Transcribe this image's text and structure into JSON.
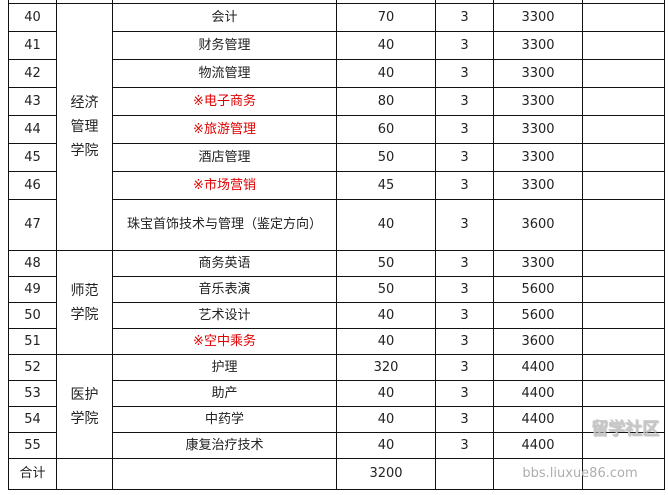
{
  "rows": [
    {
      "no": "40",
      "major": "会计",
      "count": "70",
      "years": "3",
      "fee": "3300",
      "highlight": false
    },
    {
      "no": "41",
      "major": "财务管理",
      "count": "40",
      "years": "3",
      "fee": "3300",
      "highlight": false
    },
    {
      "no": "42",
      "major": "物流管理",
      "count": "40",
      "years": "3",
      "fee": "3300",
      "highlight": false
    },
    {
      "no": "43",
      "major": "※电子商务",
      "count": "80",
      "years": "3",
      "fee": "3300",
      "highlight": true
    },
    {
      "no": "44",
      "major": "※旅游管理",
      "count": "60",
      "years": "3",
      "fee": "3300",
      "highlight": true
    },
    {
      "no": "45",
      "major": "酒店管理",
      "count": "50",
      "years": "3",
      "fee": "3300",
      "highlight": false
    },
    {
      "no": "46",
      "major": "※市场营销",
      "count": "45",
      "years": "3",
      "fee": "3300",
      "highlight": true
    },
    {
      "no": "47",
      "major": "珠宝首饰技术与管理（鉴定方向）",
      "count": "40",
      "years": "3",
      "fee": "3600",
      "highlight": false
    },
    {
      "no": "48",
      "major": "商务英语",
      "count": "50",
      "years": "3",
      "fee": "3300",
      "highlight": false
    },
    {
      "no": "49",
      "major": "音乐表演",
      "count": "50",
      "years": "3",
      "fee": "5600",
      "highlight": false
    },
    {
      "no": "50",
      "major": "艺术设计",
      "count": "40",
      "years": "3",
      "fee": "5600",
      "highlight": false
    },
    {
      "no": "51",
      "major": "※空中乘务",
      "count": "40",
      "years": "3",
      "fee": "3600",
      "highlight": true
    },
    {
      "no": "52",
      "major": "护理",
      "count": "320",
      "years": "3",
      "fee": "4400",
      "highlight": false
    },
    {
      "no": "53",
      "major": "助产",
      "count": "40",
      "years": "3",
      "fee": "4400",
      "highlight": false
    },
    {
      "no": "54",
      "major": "中药学",
      "count": "40",
      "years": "3",
      "fee": "4400",
      "highlight": false
    },
    {
      "no": "55",
      "major": "康复治疗技术",
      "count": "40",
      "years": "3",
      "fee": "4400",
      "highlight": false
    }
  ],
  "colleges": [
    {
      "name": "经济管理学院",
      "lines": [
        "经济",
        "管理",
        "学院"
      ]
    },
    {
      "name": "师范学院",
      "lines": [
        "师范",
        "学院"
      ]
    },
    {
      "name": "医护学院",
      "lines": [
        "医护",
        "学院"
      ]
    }
  ],
  "total": {
    "label": "合计",
    "count": "3200"
  },
  "colors": {
    "highlight": "#e00000",
    "border": "#111111"
  },
  "watermark": {
    "logo": "留学社区",
    "url": "bbs.liuxue86.com"
  }
}
